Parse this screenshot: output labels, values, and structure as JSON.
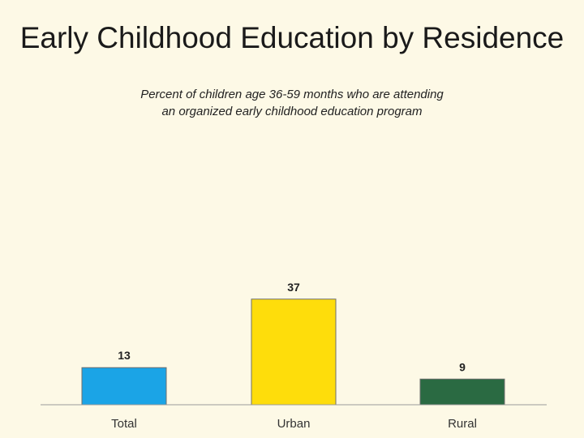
{
  "slide": {
    "title": "Early Childhood Education by Residence"
  },
  "chart_data": {
    "type": "bar",
    "subtitle_lines": [
      "Percent of children age 36-59 months who are attending",
      "an organized early childhood education program"
    ],
    "categories": [
      "Total",
      "Urban",
      "Rural"
    ],
    "values": [
      13,
      37,
      9
    ],
    "data_labels": [
      "13",
      "37",
      "9"
    ],
    "colors": [
      "#1ba4e6",
      "#fedd0b",
      "#2a6a42"
    ],
    "ylim": [
      0,
      100
    ],
    "grid": false,
    "legend": "none",
    "xlabel": "",
    "ylabel": ""
  }
}
